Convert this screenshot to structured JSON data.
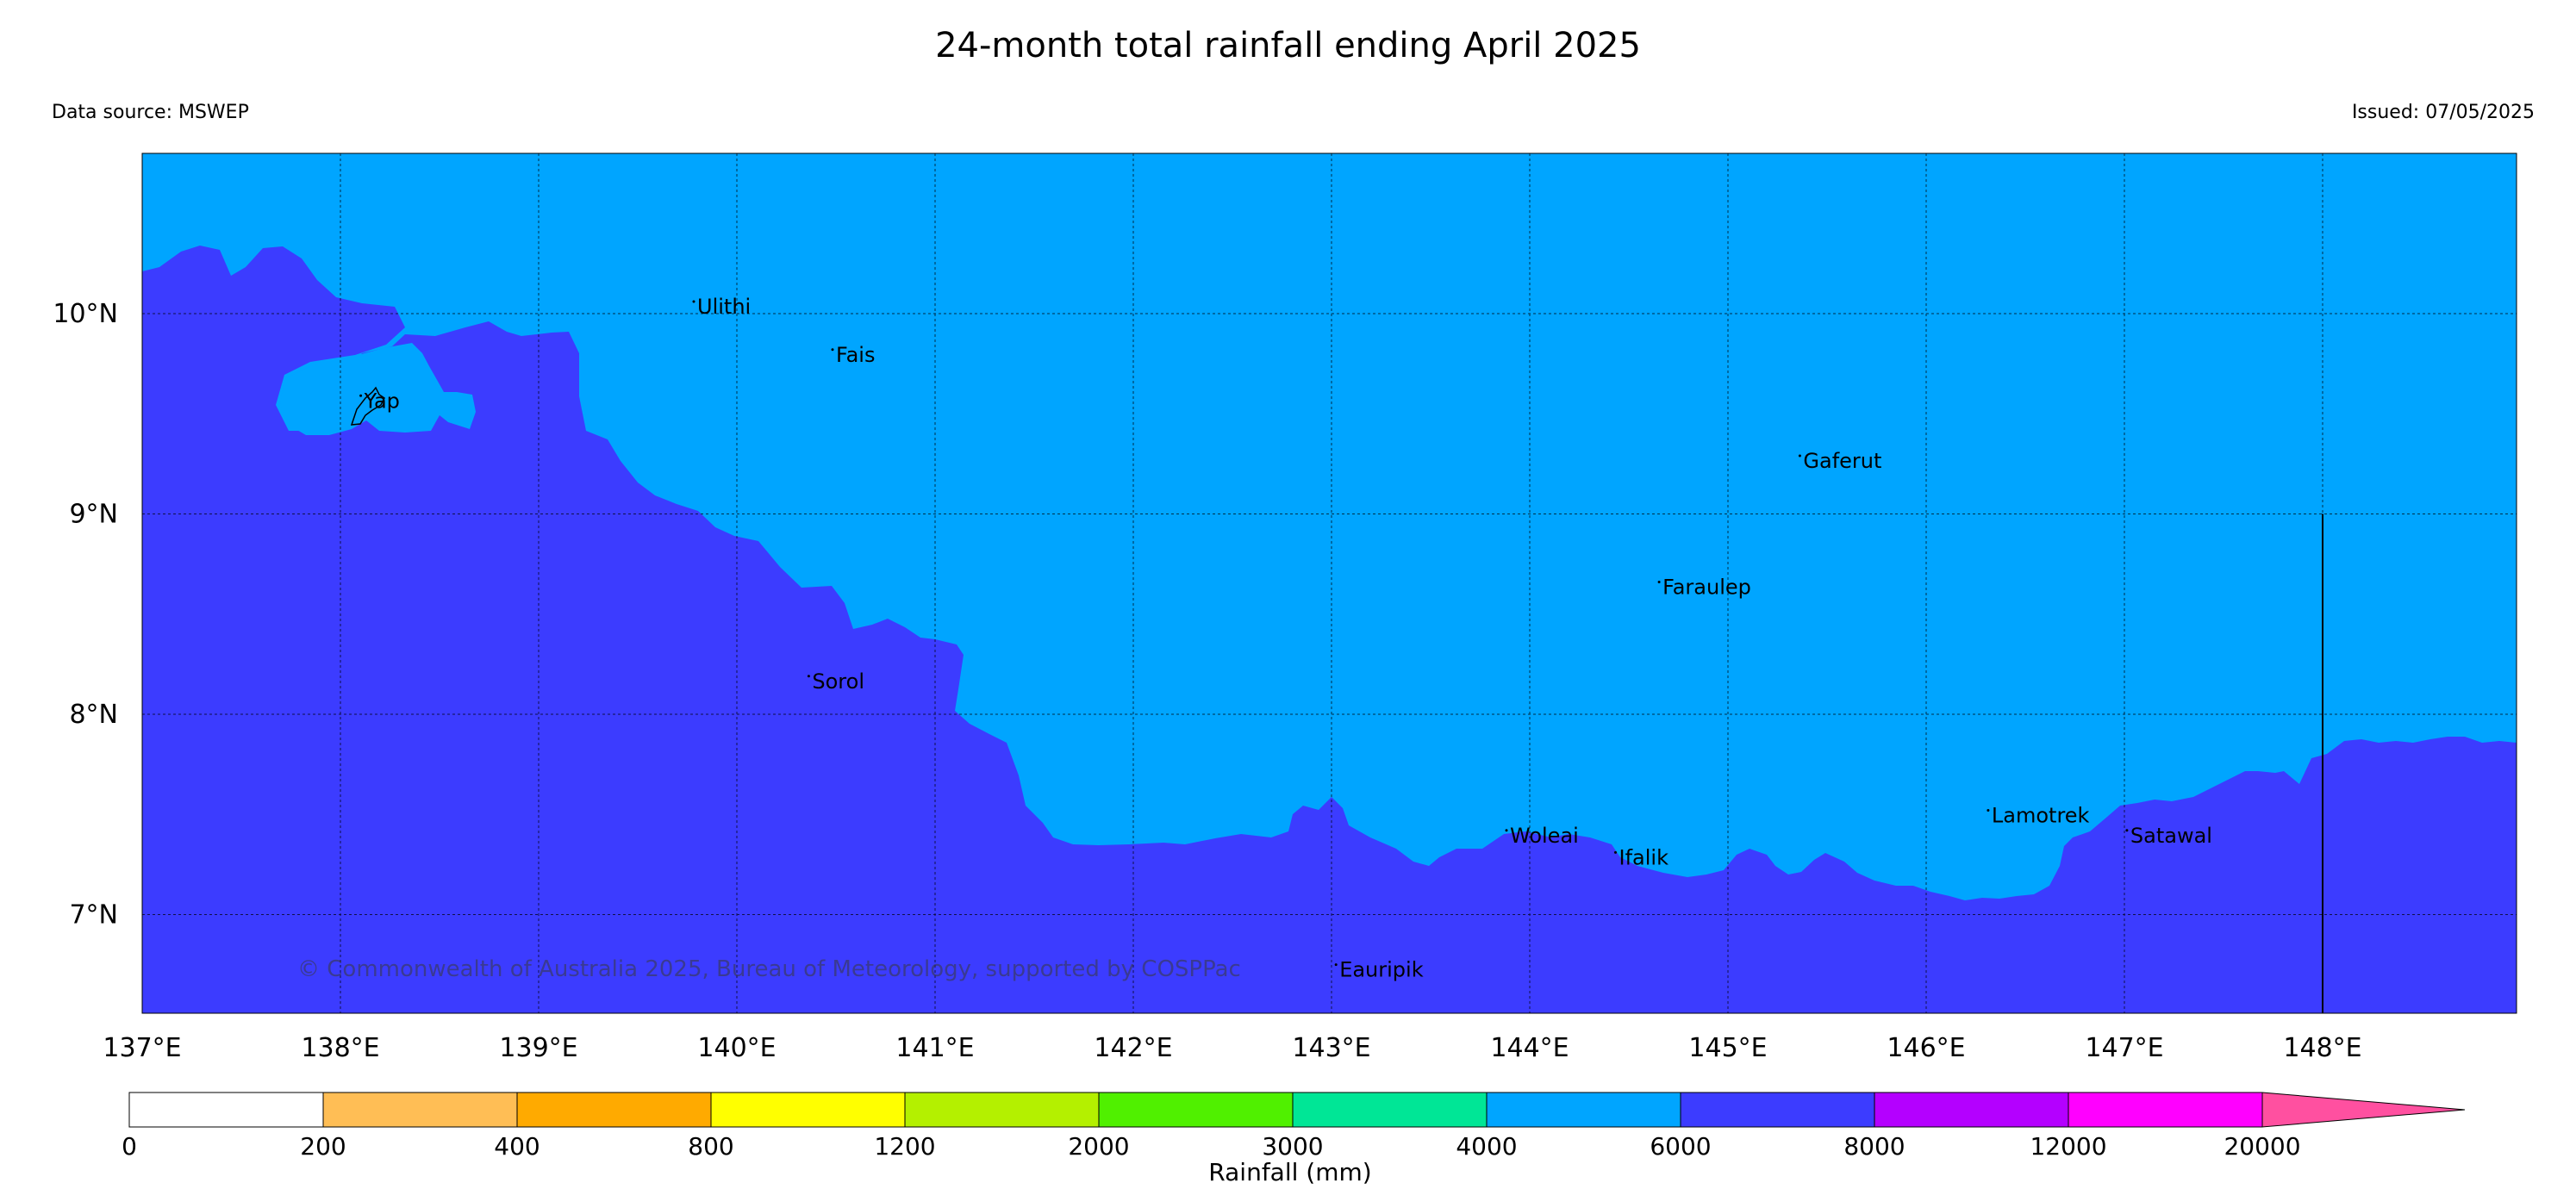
{
  "header": {
    "title": "24-month total rainfall ending April 2025",
    "data_source": "Data source: MSWEP",
    "issued": "Issued: 07/05/2025"
  },
  "map": {
    "lon_range": [
      137,
      149
    ],
    "lat_range": [
      6.5,
      10.8
    ],
    "lon_ticks": [
      "137°E",
      "138°E",
      "139°E",
      "140°E",
      "141°E",
      "142°E",
      "143°E",
      "144°E",
      "145°E",
      "146°E",
      "147°E",
      "148°E"
    ],
    "lat_ticks": [
      "10°N",
      "9°N",
      "8°N",
      "7°N"
    ],
    "colors": {
      "ocean_wet": "#00a5ff",
      "ocean_wetter": "#3c3cff"
    },
    "places": [
      {
        "name": "Ulithi",
        "lon": 139.8,
        "lat": 10.0
      },
      {
        "name": "Fais",
        "lon": 140.5,
        "lat": 9.76
      },
      {
        "name": "Yap",
        "lon": 138.12,
        "lat": 9.53
      },
      {
        "name": "Gaferut",
        "lon": 145.38,
        "lat": 9.23
      },
      {
        "name": "Faraulep",
        "lon": 144.67,
        "lat": 8.6
      },
      {
        "name": "Sorol",
        "lon": 140.38,
        "lat": 8.13
      },
      {
        "name": "Woleai",
        "lon": 143.9,
        "lat": 7.36
      },
      {
        "name": "Ifalik",
        "lon": 144.45,
        "lat": 7.25
      },
      {
        "name": "Lamotrek",
        "lon": 146.33,
        "lat": 7.46
      },
      {
        "name": "Satawal",
        "lon": 147.03,
        "lat": 7.36
      },
      {
        "name": "Eauripik",
        "lon": 143.04,
        "lat": 6.69
      }
    ],
    "copyright": "© Commonwealth of Australia 2025, Bureau of Meteorology, supported by COSPPac"
  },
  "legend": {
    "label": "Rainfall (mm)",
    "ticks": [
      "0",
      "200",
      "400",
      "800",
      "1200",
      "2000",
      "3000",
      "4000",
      "6000",
      "8000",
      "12000",
      "20000"
    ],
    "colors": [
      "#ffffff",
      "#ffbe55",
      "#ffaa00",
      "#ffff00",
      "#b4f000",
      "#50f000",
      "#00e696",
      "#00a5ff",
      "#3c3cff",
      "#b400ff",
      "#ff00ff",
      "#ff50a0"
    ]
  }
}
